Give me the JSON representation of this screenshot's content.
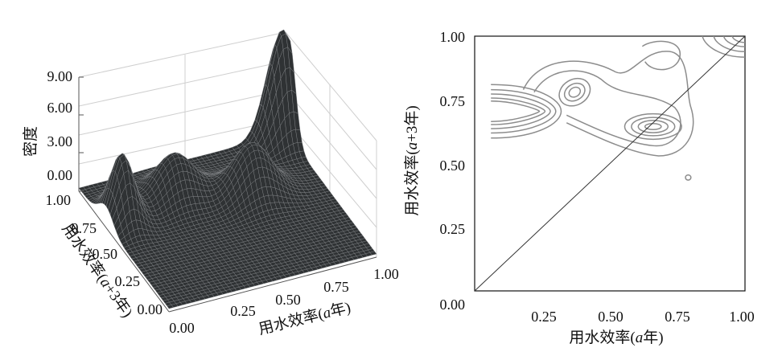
{
  "chart_data": [
    {
      "type": "surface3d",
      "zlabel": "密度",
      "xlabel_parts": [
        "用水效率(",
        "a",
        "年)"
      ],
      "ylabel_parts": [
        "用水效率(",
        "a",
        "+3年)"
      ],
      "zticks": [
        "0.00",
        "3.00",
        "6.00",
        "9.00"
      ],
      "xticks": [
        "0.00",
        "0.25",
        "0.50",
        "0.75",
        "1.00"
      ],
      "yticks": [
        "0.00",
        "0.25",
        "0.50",
        "0.75",
        "1.00"
      ],
      "zlim": [
        0,
        9
      ],
      "xlim": [
        0,
        1
      ],
      "ylim": [
        0,
        1
      ],
      "peaks": [
        {
          "x": 0.97,
          "y": 0.97,
          "height": 8.6
        },
        {
          "x": 0.08,
          "y": 0.7,
          "height": 5.2
        },
        {
          "x": 0.36,
          "y": 0.76,
          "height": 3.4
        },
        {
          "x": 0.68,
          "y": 0.64,
          "height": 4.0
        }
      ],
      "surface_color": "#2f3234"
    },
    {
      "type": "contour",
      "xlabel_parts": [
        "用水效率(",
        "a",
        "年)"
      ],
      "ylabel_parts": [
        "用水效率(",
        "a",
        "+3年)"
      ],
      "xticks": [
        "0.25",
        "0.50",
        "0.75",
        "1.00"
      ],
      "yticks": [
        "0.00",
        "0.25",
        "0.50",
        "0.75",
        "1.00"
      ],
      "xlim": [
        0,
        1
      ],
      "ylim": [
        0,
        1
      ],
      "diagonal": true,
      "contour_color": "#8c8c8c"
    }
  ]
}
